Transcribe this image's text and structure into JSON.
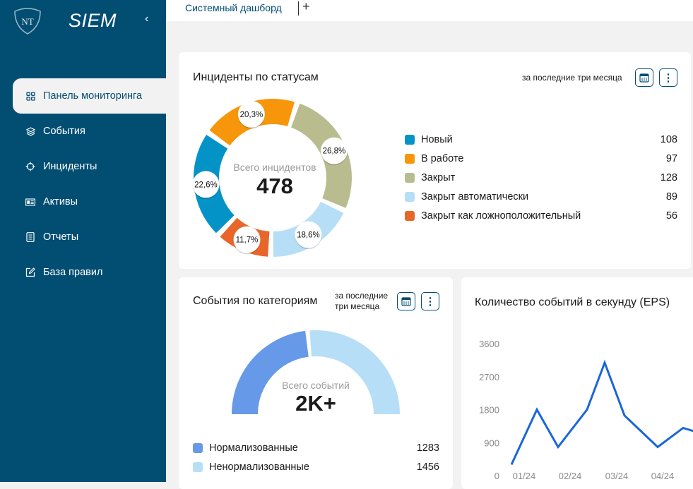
{
  "sidebar": {
    "brand": "SIEM",
    "logo_text": "NT",
    "items": [
      {
        "label": "Панель мониторинга",
        "icon": "grid-icon",
        "active": true
      },
      {
        "label": "События",
        "icon": "layers-icon"
      },
      {
        "label": "Инциденты",
        "icon": "crosshair-icon"
      },
      {
        "label": "Активы",
        "icon": "id-card-icon"
      },
      {
        "label": "Отчеты",
        "icon": "document-icon"
      },
      {
        "label": "База правил",
        "icon": "edit-icon"
      }
    ]
  },
  "tabs": {
    "active": "Системный дашборд",
    "add": "+"
  },
  "incidents": {
    "title": "Инциденты по статусам",
    "period": "за последние три месяца",
    "center_label": "Всего инцидентов",
    "total": "478"
  },
  "events": {
    "title": "События по категориям",
    "period_line1": "за последние",
    "period_line2": "три месяца",
    "center_label": "Всего событий",
    "total": "2K+"
  },
  "eps": {
    "title": "Количество событий в секунду (EPS)"
  },
  "chart_data": [
    {
      "type": "pie",
      "variant": "donut",
      "series": [
        {
          "name": "Новый",
          "value": 108,
          "percent": "22,6%",
          "color": "#0393c6"
        },
        {
          "name": "В работе",
          "value": 97,
          "percent": "20,3%",
          "color": "#f7960a"
        },
        {
          "name": "Закрыт",
          "value": 128,
          "percent": "26,8%",
          "color": "#b9bc8f"
        },
        {
          "name": "Закрыт автоматически",
          "value": 89,
          "percent": "18,6%",
          "color": "#b6dff7"
        },
        {
          "name": "Закрыт как ложноположительный",
          "value": 56,
          "percent": "11,7%",
          "color": "#e8662a"
        }
      ],
      "legend": "right"
    },
    {
      "type": "pie",
      "variant": "semi-donut",
      "series": [
        {
          "name": "Нормализованные",
          "value": 1283,
          "color": "#6699e8"
        },
        {
          "name": "Ненормализованные",
          "value": 1456,
          "color": "#b6dff7"
        }
      ],
      "legend": "bottom"
    },
    {
      "type": "line",
      "color": "#1a66d9",
      "ylim": [
        0,
        3600
      ],
      "yticks": [
        "0",
        "900",
        "1800",
        "2700",
        "3600"
      ],
      "xticks": [
        "01/24",
        "02/24",
        "03/24",
        "04/24"
      ],
      "points": [
        [
          "12/24-end",
          300
        ],
        [
          "01/24+",
          1800
        ],
        [
          "02/24-",
          780
        ],
        [
          "02/24+",
          1800
        ],
        [
          "03/24-",
          3080
        ],
        [
          "03/24",
          1640
        ],
        [
          "04/24-",
          780
        ],
        [
          "04/24+",
          1300
        ],
        [
          "04/24++",
          1150
        ]
      ],
      "grid": false
    }
  ]
}
